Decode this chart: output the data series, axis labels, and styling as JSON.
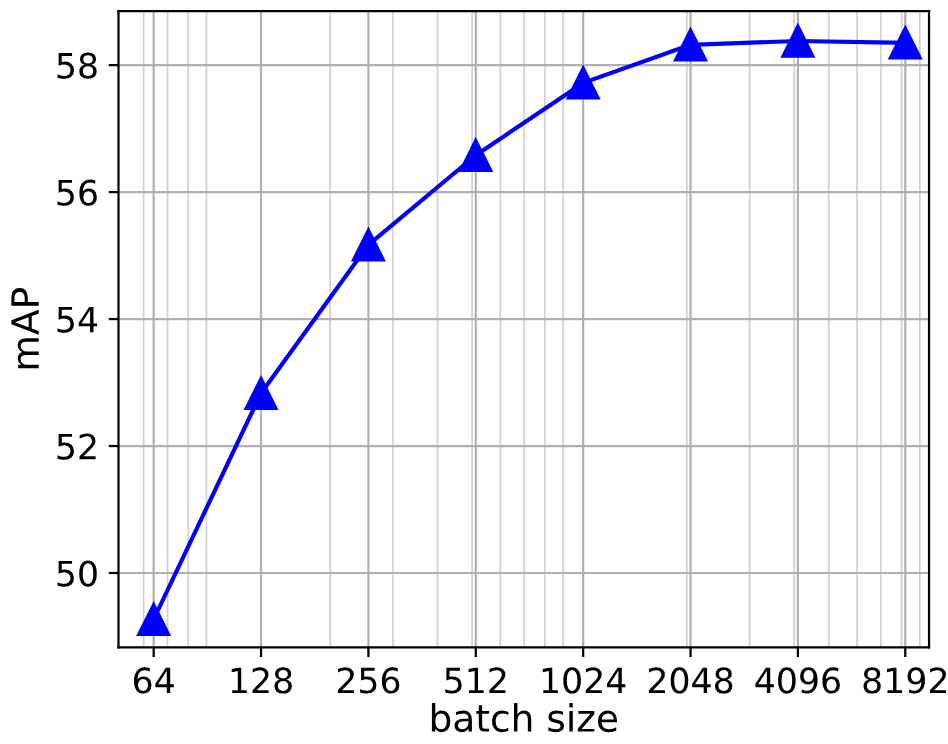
{
  "chart_data": {
    "type": "line",
    "xlabel": "batch size",
    "ylabel": "mAP",
    "x": [
      64,
      128,
      256,
      512,
      1024,
      2048,
      4096,
      8192
    ],
    "series": [
      {
        "color": "#0000ff",
        "values": [
          49.27,
          52.83,
          55.17,
          56.58,
          57.72,
          58.32,
          58.38,
          58.35
        ]
      }
    ],
    "log": "x",
    "xlim": [
      51,
      9550
    ],
    "xticks": [
      64,
      128,
      256,
      512,
      1024,
      2048,
      4096,
      8192
    ],
    "ylim": [
      48.83,
      58.85
    ],
    "yticks": [
      50,
      52,
      54,
      56,
      58
    ],
    "grid": true,
    "marker": "triangle",
    "line_style": "solid",
    "legend": false
  }
}
